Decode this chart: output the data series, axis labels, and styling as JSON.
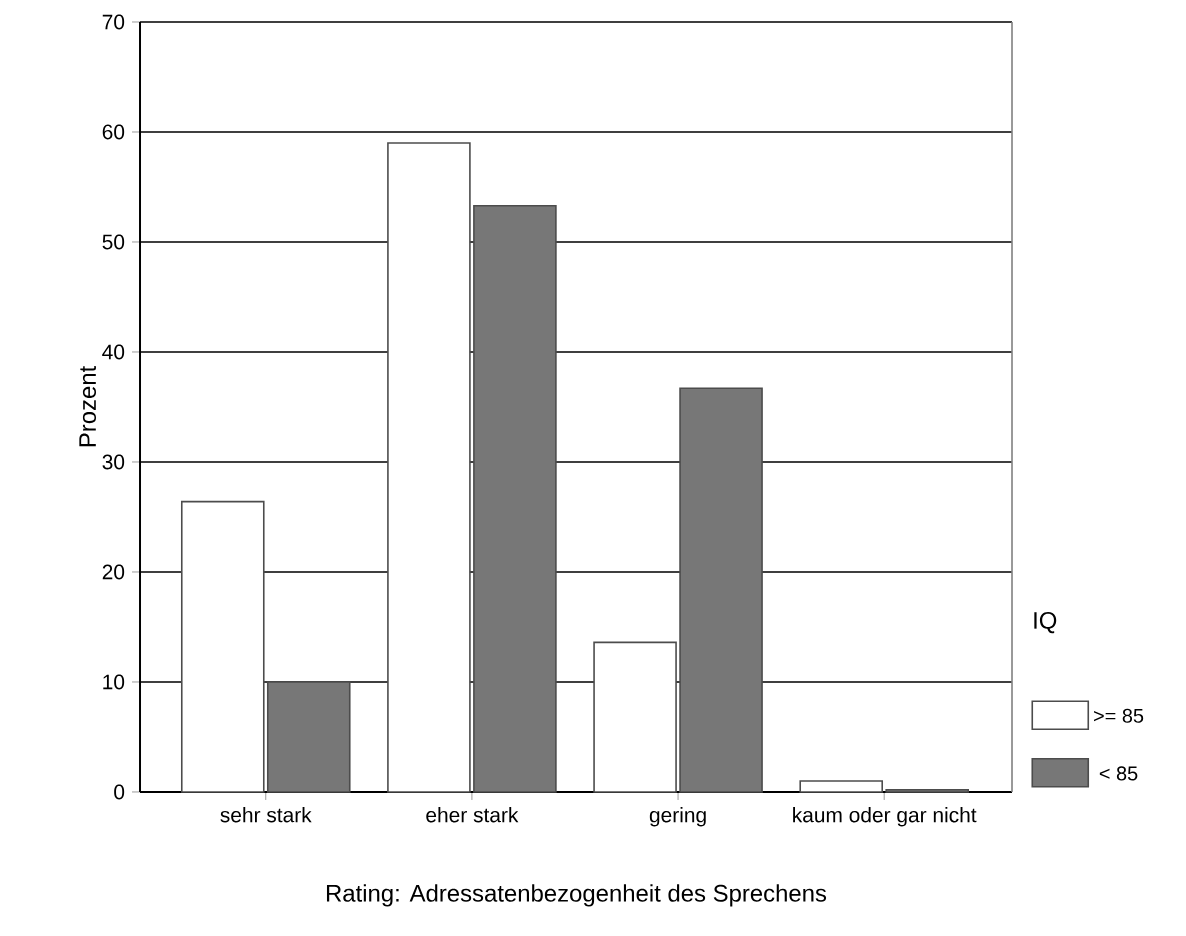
{
  "chart_data": {
    "type": "bar",
    "xlabel": "Rating: Adressatenbezogenheit des Sprechens",
    "ylabel": "Prozent",
    "legend_title": "IQ",
    "categories": [
      "sehr stark",
      "eher stark",
      "gering",
      "kaum oder gar nicht"
    ],
    "series": [
      {
        "name": ">= 85",
        "color": "#ffffff",
        "values": [
          26.4,
          59,
          13.6,
          1.0
        ]
      },
      {
        "name": "< 85",
        "color": "#777777",
        "values": [
          10,
          53.3,
          36.7,
          0.2
        ]
      }
    ],
    "ylim": [
      0,
      70
    ],
    "yticks": [
      0,
      10,
      20,
      30,
      40,
      50,
      60,
      70
    ],
    "grid": "y",
    "legend": "right"
  }
}
